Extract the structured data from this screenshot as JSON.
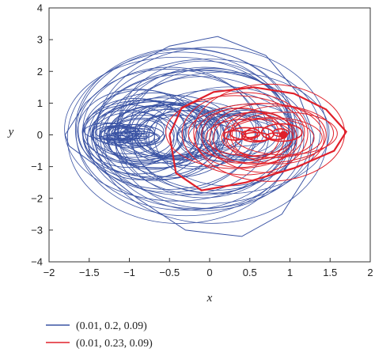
{
  "chart_data": {
    "type": "line",
    "title": "",
    "xlabel": "x",
    "ylabel": "y",
    "xlim": [
      -2,
      2
    ],
    "ylim": [
      -4,
      4
    ],
    "x_ticks": [
      -2,
      -1.5,
      -1,
      -0.5,
      0,
      0.5,
      1,
      1.5,
      2
    ],
    "y_ticks": [
      -4,
      -3,
      -2,
      -1,
      0,
      1,
      2,
      3,
      4
    ],
    "x_tick_labels": [
      "−2",
      "−1.5",
      "−1",
      "−0.5",
      "0",
      "0.5",
      "1",
      "1.5",
      "2"
    ],
    "y_tick_labels": [
      "−4",
      "−3",
      "−2",
      "−1",
      "0",
      "1",
      "2",
      "3",
      "4"
    ],
    "grid": false,
    "legend_position": "bottom-left",
    "series": [
      {
        "name": "(0.01, 0.2, 0.09)",
        "color": "#3a53a4",
        "x": [
          -1.8,
          -1.55,
          -1.1,
          -0.5,
          0.1,
          0.7,
          1.1,
          1.3,
          1.2,
          0.9,
          0.4,
          -0.3,
          -0.9,
          -1.4,
          -1.75,
          -1.8
        ],
        "y": [
          0,
          1.0,
          2.0,
          2.8,
          3.1,
          2.5,
          1.3,
          0,
          -1.3,
          -2.5,
          -3.2,
          -3.0,
          -2.0,
          -1.0,
          -0.35,
          0
        ]
      },
      {
        "name": "(0.01, 0.23, 0.09)",
        "color": "#e0202a",
        "x": [
          -0.5,
          -0.35,
          0.05,
          0.55,
          1.05,
          1.45,
          1.7,
          1.55,
          1.05,
          0.45,
          -0.1,
          -0.42,
          -0.5
        ],
        "y": [
          0,
          0.85,
          1.35,
          1.5,
          1.3,
          0.8,
          0.1,
          -0.5,
          -1.05,
          -1.5,
          -1.75,
          -1.2,
          0
        ]
      }
    ]
  }
}
